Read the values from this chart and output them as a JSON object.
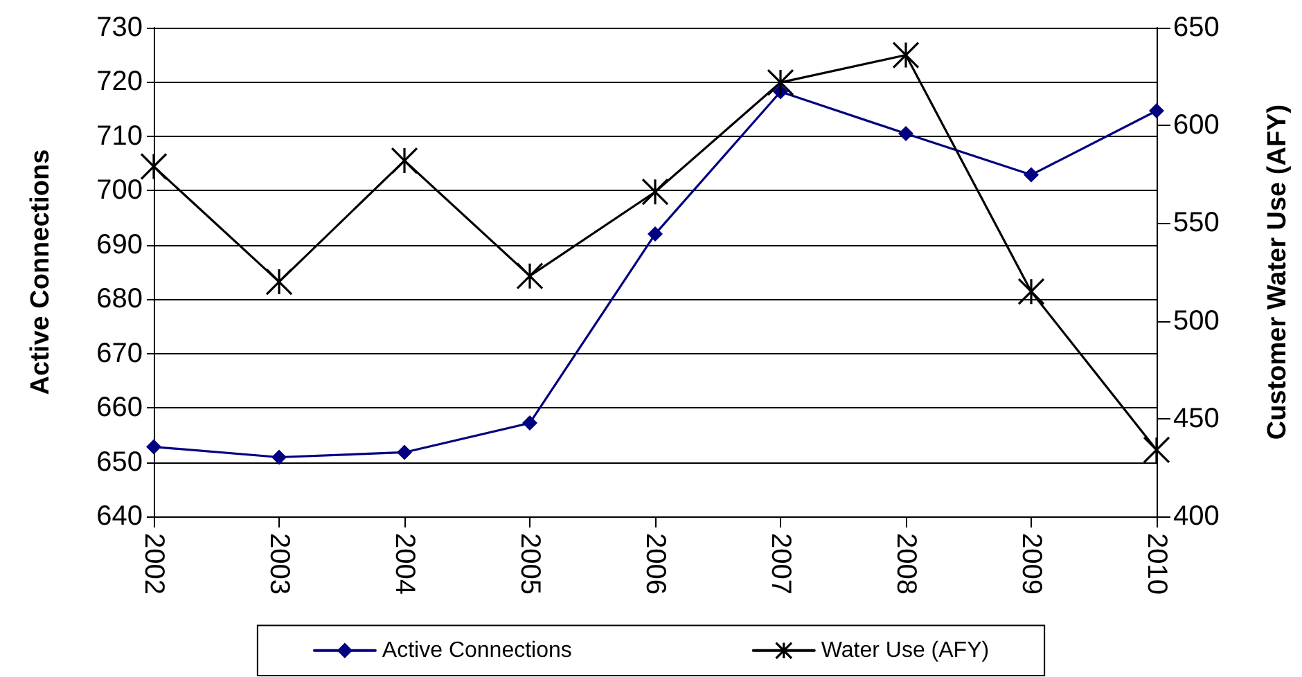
{
  "chart_data": {
    "type": "line",
    "categories": [
      "2002",
      "2003",
      "2004",
      "2005",
      "2006",
      "2007",
      "2008",
      "2009",
      "2010"
    ],
    "series": [
      {
        "name": "Active Connections",
        "color": "#000080",
        "marker": "diamond",
        "values": [
          652.8,
          650.9,
          651.8,
          657.2,
          692.0,
          718.2,
          710.5,
          702.9,
          714.7
        ]
      },
      {
        "name": "Water Use (AFY)",
        "color": "#000000",
        "marker": "cross",
        "axis": "y2",
        "values": [
          579,
          520,
          582,
          523,
          566,
          622,
          636,
          515,
          434
        ]
      }
    ],
    "ylabel": "Active Connections",
    "y2label": "Customer Water Use (AFY)",
    "ylim": [
      640,
      730
    ],
    "yticks": [
      640,
      650,
      660,
      670,
      680,
      690,
      700,
      710,
      720,
      730
    ],
    "y2lim": [
      400,
      650
    ],
    "y2ticks": [
      400,
      450,
      500,
      550,
      600,
      650
    ],
    "grid": "y",
    "legend": "bottom"
  }
}
